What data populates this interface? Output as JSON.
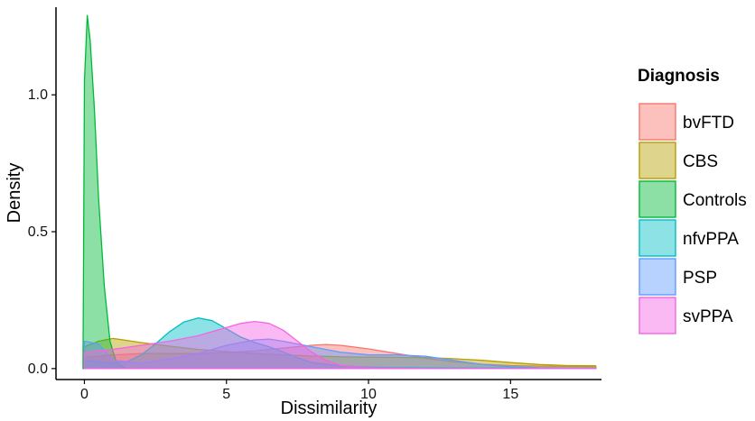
{
  "chart_data": {
    "type": "area",
    "subtype": "density",
    "xlabel": "Dissimilarity",
    "ylabel": "Density",
    "xlim": [
      -1,
      18.2
    ],
    "ylim": [
      -0.04,
      1.32
    ],
    "x_ticks": [
      0,
      5,
      10,
      15
    ],
    "y_ticks": [
      0.0,
      0.5,
      1.0
    ],
    "y_tick_labels": [
      "0.0",
      "0.5",
      "1.0"
    ],
    "grid": false,
    "legend": {
      "title": "Diagnosis",
      "placement": "right"
    },
    "fill_opacity": 0.45,
    "series": [
      {
        "name": "bvFTD",
        "color": "#F8766D",
        "x": [
          0,
          1,
          2,
          3,
          4,
          5,
          6,
          7,
          8,
          8.5,
          9,
          10,
          11,
          12,
          13,
          14,
          15,
          16,
          17,
          18
        ],
        "y": [
          0.04,
          0.05,
          0.055,
          0.055,
          0.055,
          0.058,
          0.065,
          0.075,
          0.085,
          0.088,
          0.085,
          0.072,
          0.055,
          0.038,
          0.025,
          0.016,
          0.011,
          0.009,
          0.008,
          0.007
        ]
      },
      {
        "name": "CBS",
        "color": "#B79F00",
        "x": [
          0,
          0.5,
          1,
          2,
          3,
          4,
          5,
          6,
          7,
          8,
          9,
          10,
          11,
          12,
          13,
          14,
          15,
          16,
          17,
          18
        ],
        "y": [
          0.08,
          0.1,
          0.11,
          0.095,
          0.082,
          0.07,
          0.062,
          0.055,
          0.05,
          0.046,
          0.043,
          0.042,
          0.041,
          0.04,
          0.036,
          0.03,
          0.022,
          0.015,
          0.011,
          0.01
        ]
      },
      {
        "name": "Controls",
        "color": "#00BA38",
        "x": [
          -0.05,
          0,
          0.1,
          0.2,
          0.35,
          0.5,
          0.7,
          0.9,
          1.1,
          1.3,
          1.5,
          18
        ],
        "y": [
          0,
          1.05,
          1.29,
          1.2,
          0.95,
          0.62,
          0.3,
          0.1,
          0.03,
          0.01,
          0,
          0
        ]
      },
      {
        "name": "nfvPPA",
        "color": "#00BFC4",
        "x": [
          0,
          1,
          1.5,
          2,
          2.5,
          3,
          3.5,
          4,
          4.5,
          5,
          5.5,
          6,
          6.5,
          7,
          7.5,
          8,
          9,
          10,
          11,
          12,
          18
        ],
        "y": [
          0.03,
          0.02,
          0.025,
          0.05,
          0.09,
          0.135,
          0.17,
          0.185,
          0.175,
          0.145,
          0.115,
          0.095,
          0.08,
          0.06,
          0.04,
          0.022,
          0.01,
          0.005,
          0.003,
          0.002,
          0.001
        ]
      },
      {
        "name": "PSP",
        "color": "#619CFF",
        "x": [
          0,
          0.5,
          1,
          2,
          3,
          4,
          5,
          6,
          6.5,
          7,
          8,
          9,
          10,
          11,
          12,
          13,
          14,
          15,
          16,
          18
        ],
        "y": [
          0.1,
          0.09,
          0.03,
          0.02,
          0.035,
          0.055,
          0.085,
          0.105,
          0.108,
          0.1,
          0.08,
          0.06,
          0.05,
          0.05,
          0.045,
          0.03,
          0.015,
          0.007,
          0.003,
          0.001
        ]
      },
      {
        "name": "svPPA",
        "color": "#F564E3",
        "x": [
          0,
          1,
          2,
          3,
          4,
          5,
          5.5,
          6,
          6.5,
          7,
          7.5,
          8,
          8.5,
          9,
          10,
          11,
          12,
          18
        ],
        "y": [
          0.06,
          0.07,
          0.085,
          0.1,
          0.12,
          0.15,
          0.165,
          0.172,
          0.165,
          0.14,
          0.1,
          0.06,
          0.03,
          0.012,
          0.003,
          0.001,
          0,
          0
        ]
      }
    ]
  }
}
